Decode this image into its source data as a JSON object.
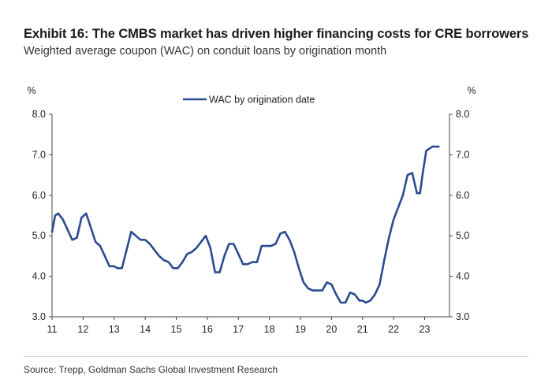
{
  "title": "Exhibit 16: The CMBS market has driven higher financing costs for CRE borrowers",
  "subtitle": "Weighted average coupon (WAC) on conduit loans by origination month",
  "source": "Source: Trepp, Goldman Sachs Global Investment Research",
  "colors": {
    "series": "#2a4b8f",
    "axis": "#444444",
    "text": "#222222"
  },
  "chart_data": {
    "type": "line",
    "ylabel_left": "%",
    "ylabel_right": "%",
    "ylim": [
      3.0,
      8.0
    ],
    "xlim": [
      11,
      23.8
    ],
    "y_ticks": [
      "3.0",
      "4.0",
      "5.0",
      "6.0",
      "7.0",
      "8.0"
    ],
    "x_ticks": [
      "11",
      "12",
      "13",
      "14",
      "15",
      "16",
      "17",
      "18",
      "19",
      "20",
      "21",
      "22",
      "23"
    ],
    "grid": false,
    "legend_position": "top-center",
    "series": [
      {
        "name": "WAC by origination date",
        "x": [
          11.0,
          11.1,
          11.2,
          11.35,
          11.5,
          11.65,
          11.8,
          11.95,
          12.1,
          12.25,
          12.4,
          12.55,
          12.7,
          12.85,
          13.0,
          13.1,
          13.25,
          13.4,
          13.55,
          13.7,
          13.85,
          14.0,
          14.15,
          14.3,
          14.45,
          14.6,
          14.75,
          14.9,
          15.05,
          15.2,
          15.35,
          15.5,
          15.65,
          15.8,
          15.95,
          16.1,
          16.25,
          16.4,
          16.55,
          16.7,
          16.85,
          17.0,
          17.15,
          17.3,
          17.45,
          17.6,
          17.75,
          17.9,
          18.05,
          18.2,
          18.35,
          18.5,
          18.65,
          18.8,
          18.95,
          19.1,
          19.25,
          19.4,
          19.55,
          19.7,
          19.85,
          20.0,
          20.15,
          20.3,
          20.45,
          20.6,
          20.75,
          20.9,
          21.0,
          21.1,
          21.25,
          21.4,
          21.55,
          21.7,
          21.85,
          22.0,
          22.15,
          22.3,
          22.45,
          22.6,
          22.75,
          22.85,
          22.95,
          23.05,
          23.15,
          23.25,
          23.35,
          23.45
        ],
        "values": [
          5.1,
          5.5,
          5.55,
          5.4,
          5.15,
          4.9,
          4.95,
          5.45,
          5.55,
          5.2,
          4.85,
          4.75,
          4.5,
          4.25,
          4.25,
          4.2,
          4.2,
          4.65,
          5.1,
          5.0,
          4.9,
          4.9,
          4.8,
          4.65,
          4.5,
          4.4,
          4.35,
          4.2,
          4.2,
          4.35,
          4.55,
          4.6,
          4.7,
          4.85,
          5.0,
          4.7,
          4.1,
          4.1,
          4.5,
          4.8,
          4.8,
          4.55,
          4.3,
          4.3,
          4.35,
          4.35,
          4.75,
          4.75,
          4.75,
          4.8,
          5.05,
          5.1,
          4.9,
          4.6,
          4.2,
          3.85,
          3.7,
          3.65,
          3.65,
          3.65,
          3.85,
          3.8,
          3.55,
          3.35,
          3.35,
          3.6,
          3.55,
          3.4,
          3.4,
          3.35,
          3.4,
          3.55,
          3.8,
          4.4,
          4.95,
          5.4,
          5.7,
          6.0,
          6.5,
          6.55,
          6.05,
          6.05,
          6.6,
          7.1,
          7.15,
          7.2,
          7.2,
          7.2
        ]
      }
    ]
  }
}
